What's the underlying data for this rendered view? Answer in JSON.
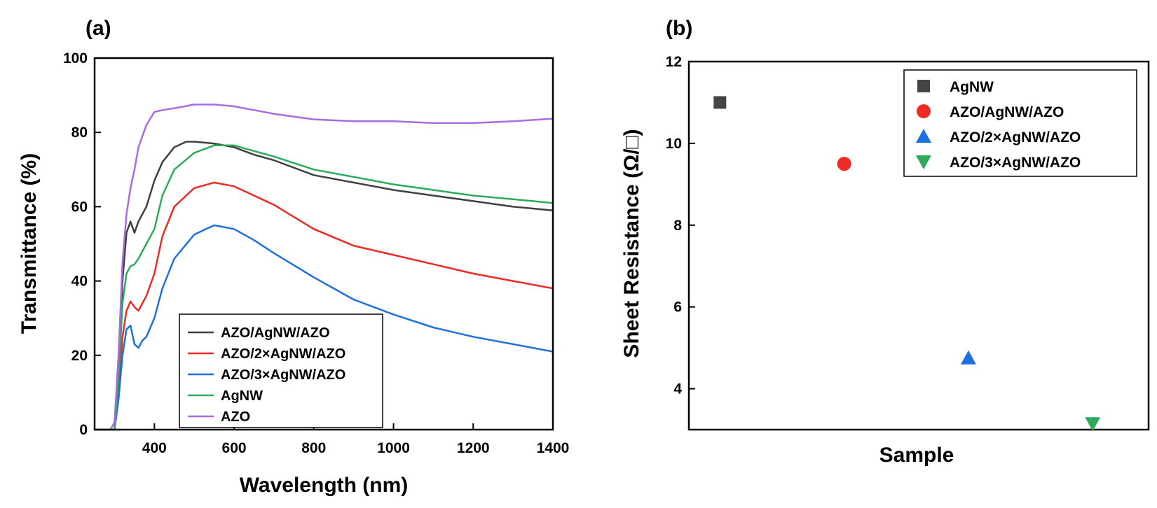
{
  "chart_data": [
    {
      "panel_label": "(a)",
      "type": "line",
      "title": "",
      "xlabel": "Wavelength (nm)",
      "ylabel": "Transmittance (%)",
      "xlim": [
        250,
        1400
      ],
      "ylim": [
        0,
        100
      ],
      "xticks": [
        400,
        600,
        800,
        1000,
        1200,
        1400
      ],
      "yticks": [
        0,
        20,
        40,
        60,
        80,
        100
      ],
      "grid": false,
      "legend_position": "bottom-center",
      "series": [
        {
          "name": "AZO/AgNW/AZO",
          "color": "#404040",
          "x": [
            250,
            290,
            300,
            310,
            320,
            330,
            340,
            350,
            360,
            370,
            380,
            400,
            420,
            450,
            480,
            500,
            550,
            600,
            650,
            700,
            800,
            900,
            1000,
            1100,
            1200,
            1300,
            1400
          ],
          "y": [
            0,
            0,
            0,
            15,
            40,
            53,
            56,
            53,
            56,
            58,
            60,
            67,
            72,
            76,
            77.5,
            77.5,
            77,
            76,
            74,
            72.5,
            68.5,
            66.5,
            64.5,
            63,
            61.5,
            60,
            59
          ]
        },
        {
          "name": "AZO/2×AgNW/AZO",
          "color": "#ee2a24",
          "x": [
            250,
            290,
            300,
            310,
            320,
            330,
            340,
            350,
            360,
            370,
            380,
            400,
            420,
            450,
            500,
            550,
            600,
            650,
            700,
            800,
            900,
            1000,
            1100,
            1200,
            1300,
            1400
          ],
          "y": [
            0,
            0,
            0,
            10,
            25,
            32,
            34.5,
            33,
            32,
            34,
            36,
            42,
            52,
            60,
            65,
            66.5,
            65.5,
            63,
            60.5,
            54,
            49.5,
            47,
            44.5,
            42,
            40,
            38
          ]
        },
        {
          "name": "AZO/3×AgNW/AZO",
          "color": "#1f6fe0",
          "x": [
            250,
            290,
            300,
            310,
            320,
            330,
            340,
            350,
            360,
            370,
            380,
            400,
            420,
            450,
            500,
            550,
            600,
            650,
            700,
            800,
            900,
            1000,
            1100,
            1200,
            1300,
            1400
          ],
          "y": [
            0,
            0,
            0,
            8,
            20,
            27,
            28,
            23,
            22,
            24,
            25,
            30,
            38,
            46,
            52.5,
            55,
            54,
            51,
            47.5,
            41,
            35,
            31,
            27.5,
            25,
            23,
            21
          ]
        },
        {
          "name": "AgNW",
          "color": "#2cab5c",
          "x": [
            250,
            290,
            300,
            310,
            320,
            330,
            340,
            350,
            360,
            370,
            380,
            400,
            420,
            450,
            500,
            550,
            600,
            650,
            700,
            800,
            900,
            1000,
            1100,
            1200,
            1300,
            1400
          ],
          "y": [
            0,
            0,
            0,
            14,
            34,
            42,
            44,
            44.5,
            46,
            48,
            50,
            54,
            63,
            70,
            74.5,
            76.5,
            76.5,
            75,
            73.5,
            70,
            68,
            66,
            64.5,
            63,
            62,
            61
          ]
        },
        {
          "name": "AZO",
          "color": "#a86be0",
          "x": [
            250,
            290,
            300,
            310,
            320,
            330,
            340,
            350,
            360,
            380,
            400,
            420,
            450,
            500,
            550,
            600,
            650,
            700,
            800,
            900,
            1000,
            1100,
            1200,
            1300,
            1400
          ],
          "y": [
            0,
            0,
            2,
            20,
            45,
            58,
            65,
            70,
            76,
            82,
            85.5,
            86,
            86.5,
            87.5,
            87.5,
            87,
            86,
            85,
            83.5,
            83,
            83,
            82.5,
            82.5,
            83,
            83.7
          ]
        }
      ]
    },
    {
      "panel_label": "(b)",
      "type": "scatter",
      "title": "",
      "xlabel": "Sample",
      "ylabel": "Sheet Resistance (Ω/□)",
      "ylim": [
        3,
        12
      ],
      "yticks": [
        4,
        6,
        8,
        10,
        12
      ],
      "grid": false,
      "legend_position": "top-right",
      "series": [
        {
          "name": "AgNW",
          "x": 1,
          "y": 11.0,
          "color": "#454545",
          "marker": "square"
        },
        {
          "name": "AZO/AgNW/AZO",
          "x": 2,
          "y": 9.5,
          "color": "#ee2a24",
          "marker": "circle"
        },
        {
          "name": "AZO/2×AgNW/AZO",
          "x": 3,
          "y": 4.75,
          "color": "#1f6fe0",
          "marker": "triangle-up"
        },
        {
          "name": "AZO/3×AgNW/AZO",
          "x": 4,
          "y": 3.15,
          "color": "#2cab5c",
          "marker": "triangle-down"
        }
      ]
    }
  ]
}
